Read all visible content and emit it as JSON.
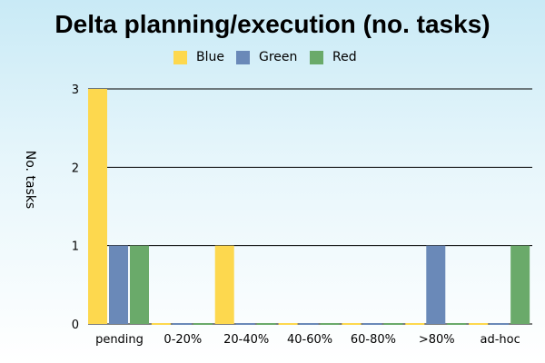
{
  "chart_data": {
    "type": "bar",
    "title": "Delta planning/execution (no. tasks)",
    "ylabel": "No. tasks",
    "xlabel": "",
    "categories": [
      "pending",
      "0-20%",
      "20-40%",
      "40-60%",
      "60-80%",
      ">80%",
      "ad-hoc"
    ],
    "series": [
      {
        "name": "Blue",
        "color": "#fdd84e",
        "values": [
          3,
          0,
          1,
          0,
          0,
          0,
          0
        ]
      },
      {
        "name": "Green",
        "color": "#6a89b8",
        "values": [
          1,
          0,
          0,
          0,
          0,
          1,
          0
        ]
      },
      {
        "name": "Red",
        "color": "#6aaa6a",
        "values": [
          1,
          0,
          0,
          0,
          0,
          0,
          1
        ]
      }
    ],
    "yticks": [
      "0",
      "1",
      "2",
      "3"
    ],
    "ylim": [
      0,
      3
    ],
    "grid": true,
    "legend": "top-center"
  }
}
